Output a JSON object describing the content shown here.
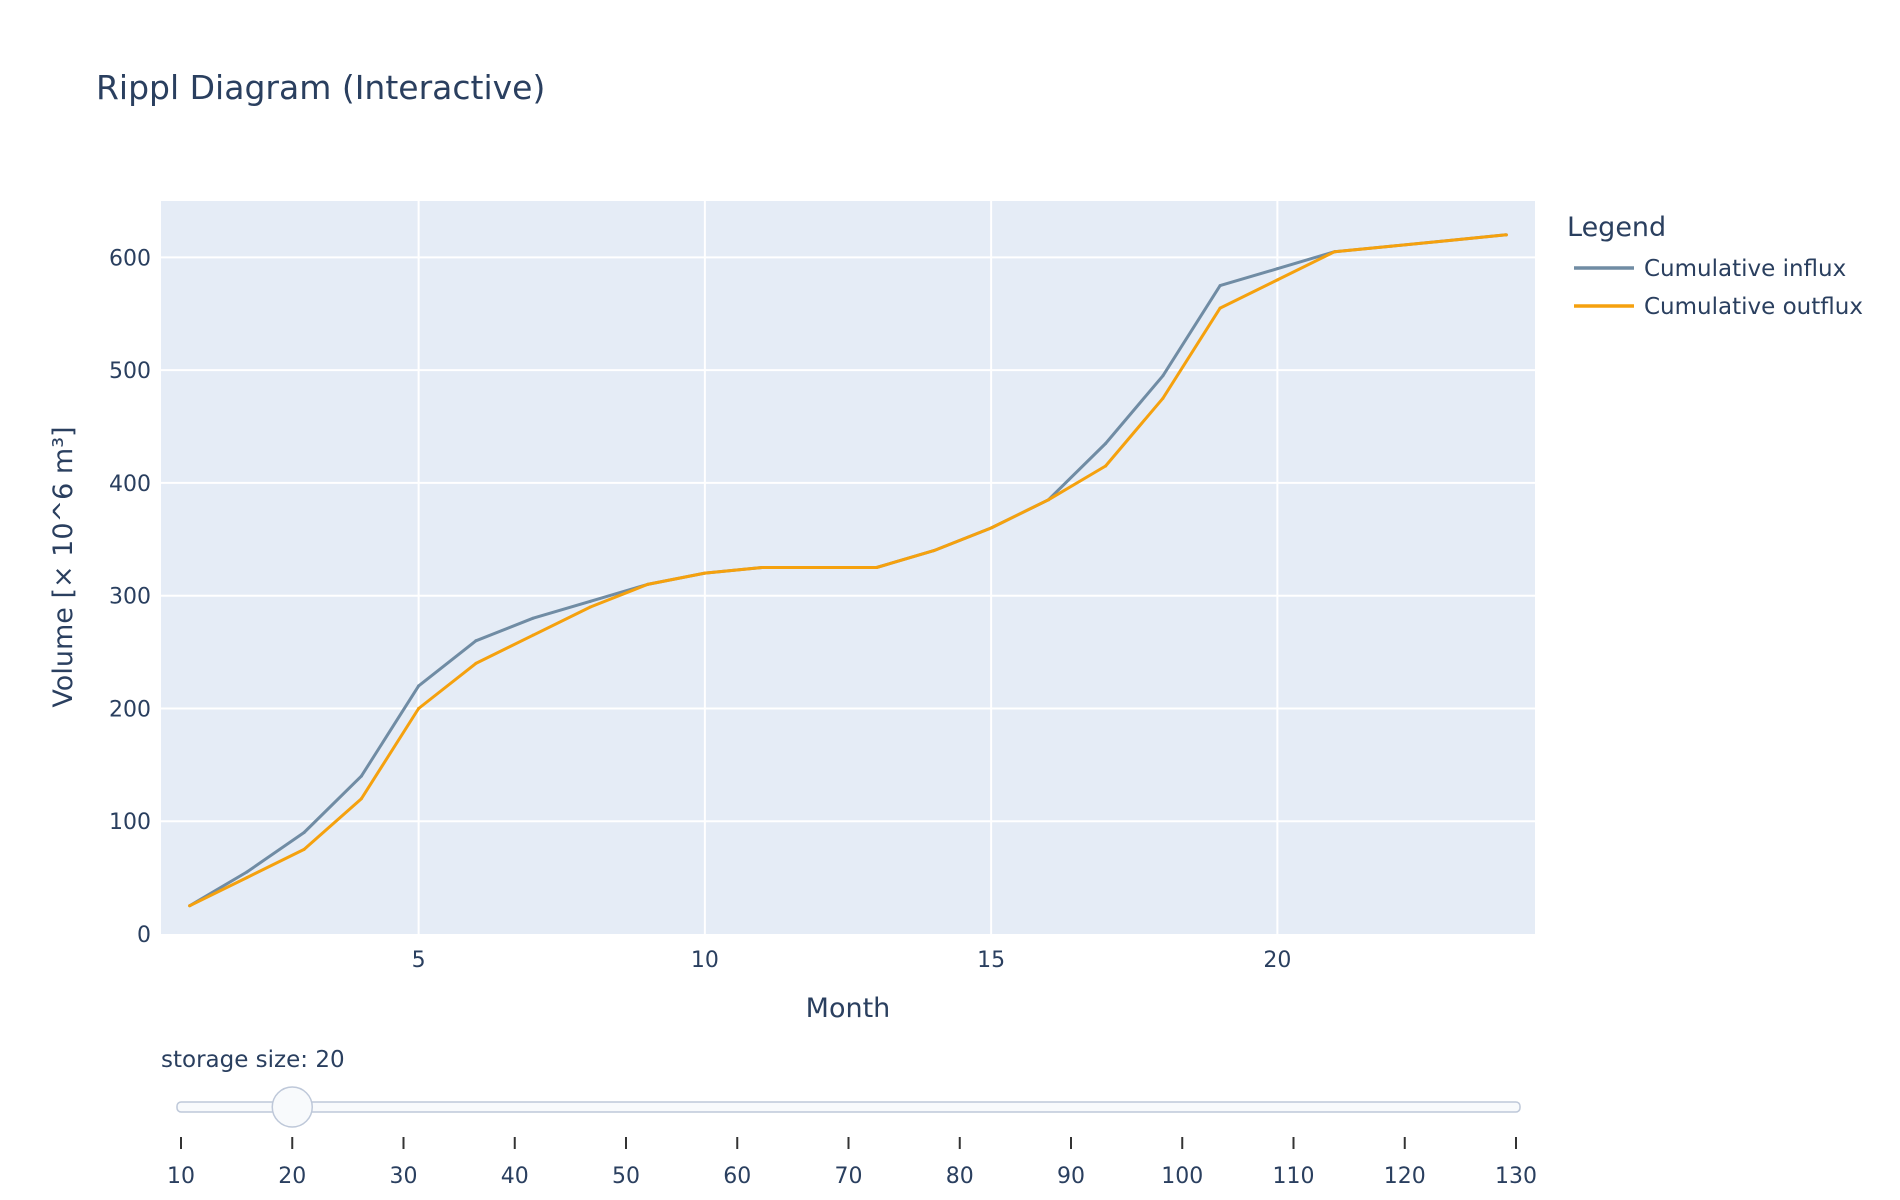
{
  "chart_data": {
    "type": "line",
    "title": "Rippl Diagram (Interactive)",
    "xlabel": "Month",
    "ylabel": "Volume [× 10^6 m³]",
    "xlim": [
      0.5,
      24.5
    ],
    "ylim": [
      0,
      650
    ],
    "xticks": [
      5,
      10,
      15,
      20
    ],
    "yticks": [
      0,
      100,
      200,
      300,
      400,
      500,
      600
    ],
    "grid": true,
    "legend": {
      "title": "Legend",
      "position": "right"
    },
    "x": [
      1,
      2,
      3,
      4,
      5,
      6,
      7,
      8,
      9,
      10,
      11,
      12,
      13,
      14,
      15,
      16,
      17,
      18,
      19,
      20,
      21,
      22,
      23,
      24
    ],
    "series": [
      {
        "name": "Cumulative influx",
        "color": "#708ca4",
        "values": [
          25,
          55,
          90,
          140,
          220,
          260,
          280,
          295,
          310,
          320,
          325,
          325,
          325,
          340,
          360,
          385,
          435,
          495,
          575,
          590,
          605,
          610,
          615,
          620
        ]
      },
      {
        "name": "Cumulative outflux",
        "color": "#f5a10e",
        "values": [
          25,
          50,
          75,
          120,
          200,
          240,
          265,
          290,
          310,
          320,
          325,
          325,
          325,
          340,
          360,
          385,
          415,
          475,
          555,
          580,
          605,
          610,
          615,
          620
        ]
      }
    ]
  },
  "slider": {
    "label": "storage size: 20",
    "value": 20,
    "min": 10,
    "max": 130,
    "ticks": [
      10,
      20,
      30,
      40,
      50,
      60,
      70,
      80,
      90,
      100,
      110,
      120,
      130
    ]
  }
}
